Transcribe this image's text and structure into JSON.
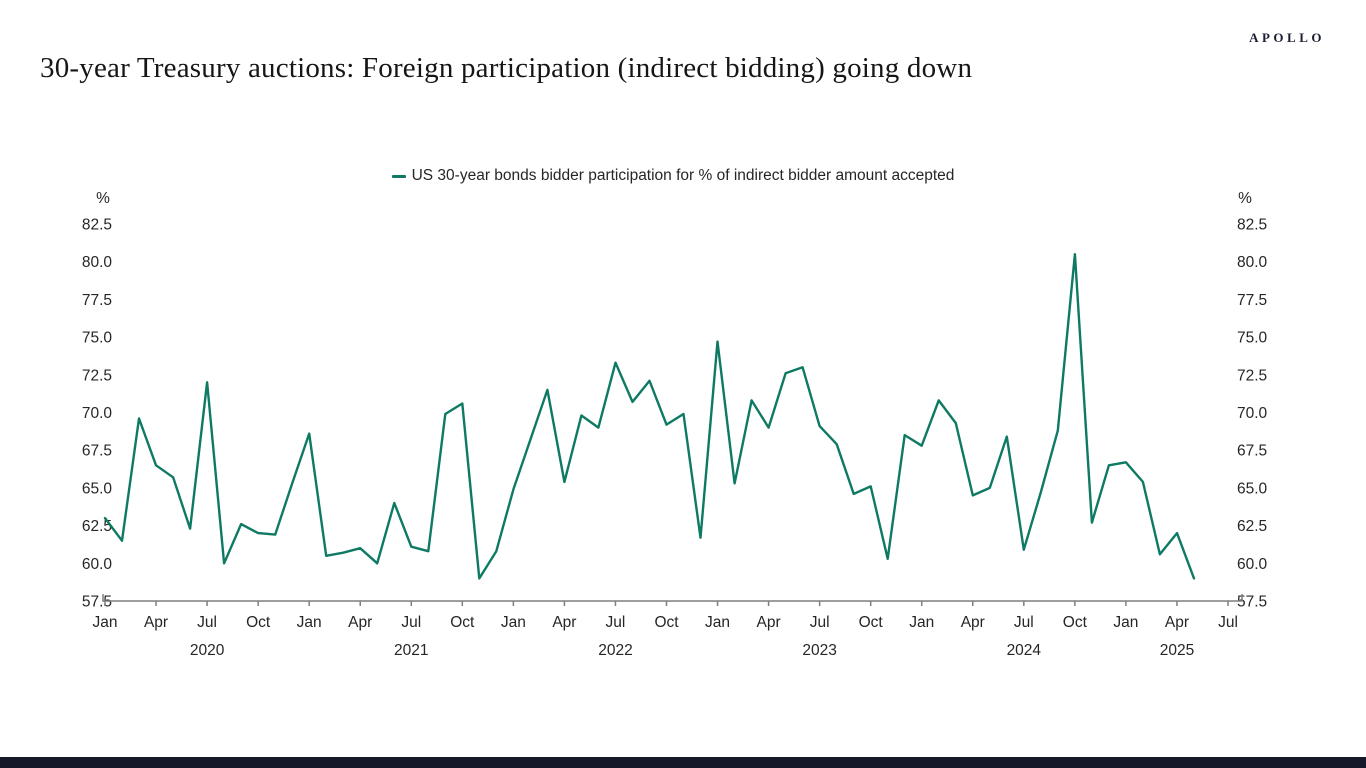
{
  "brand": {
    "logo_text": "APOLLO"
  },
  "header": {
    "title": "30-year Treasury auctions: Foreign participation (indirect bidding) going down"
  },
  "chart_data": {
    "type": "line",
    "legend": "US 30-year bonds bidder participation for % of indirect bidder amount accepted",
    "unit_label_left": "%",
    "unit_label_right": "%",
    "ylim": [
      57.5,
      82.5
    ],
    "yticks": [
      82.5,
      80.0,
      77.5,
      75.0,
      72.5,
      70.0,
      67.5,
      65.0,
      62.5,
      60.0,
      57.5
    ],
    "grid": "off",
    "legend_position": "top-center",
    "line_color": "#0E7A63",
    "axis_color": "#7f7f7f",
    "frequency": "monthly",
    "x_axis": {
      "start": "Jan 2020",
      "end": "Jul 2025",
      "tick_interval_months": 3,
      "tick_labels": [
        "Jan",
        "Apr",
        "Jul",
        "Oct",
        "Jan",
        "Apr",
        "Jul",
        "Oct",
        "Jan",
        "Apr",
        "Jul",
        "Oct",
        "Jan",
        "Apr",
        "Jul",
        "Oct",
        "Jan",
        "Apr",
        "Jul",
        "Oct",
        "Jan",
        "Apr",
        "Jul"
      ],
      "year_labels": [
        "2020",
        "2021",
        "2022",
        "2023",
        "2024",
        "2025"
      ]
    },
    "series": [
      {
        "name": "US 30-year bonds bidder participation for % of indirect bidder amount accepted",
        "start": "Jan 2020",
        "end": "May 2025",
        "years_order": [
          "2020",
          "2021",
          "2022",
          "2023",
          "2024",
          "2025"
        ],
        "values_by_year": {
          "2020": [
            63.0,
            61.5,
            69.6,
            66.5,
            65.7,
            62.3,
            72.0,
            60.0,
            62.6,
            62.0,
            61.9,
            65.3
          ],
          "2021": [
            68.6,
            60.5,
            60.7,
            61.0,
            60.0,
            64.0,
            61.1,
            60.8,
            69.9,
            70.6,
            59.0,
            60.8
          ],
          "2022": [
            64.9,
            68.2,
            71.5,
            65.4,
            69.8,
            69.0,
            73.3,
            70.7,
            72.1,
            69.2,
            69.9,
            61.7
          ],
          "2023": [
            74.7,
            65.3,
            70.8,
            69.0,
            72.6,
            73.0,
            69.1,
            67.9,
            64.6,
            65.1,
            60.3,
            68.5
          ],
          "2024": [
            67.8,
            70.8,
            69.3,
            64.5,
            65.0,
            68.4,
            60.9,
            64.7,
            68.8,
            80.5,
            62.7,
            66.5
          ],
          "2025": [
            66.7,
            65.4,
            60.6,
            62.0,
            59.0
          ]
        }
      }
    ]
  }
}
